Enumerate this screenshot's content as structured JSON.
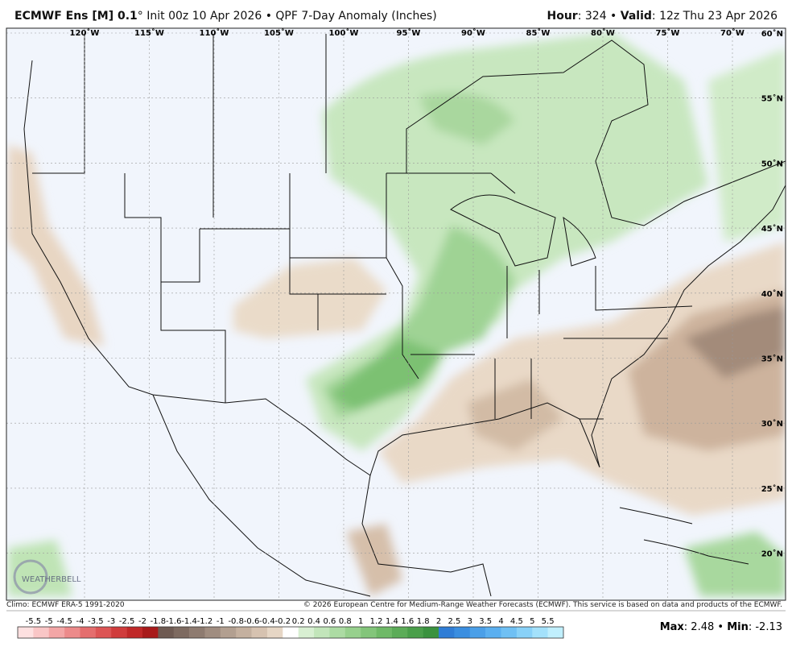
{
  "header": {
    "title_bold": "ECMWF Ens [M] 0.1",
    "title_rest": "° Init 00z 10 Apr 2026 • QPF 7-Day Anomaly (Inches)",
    "hour_label": "Hour",
    "hour_value": ": 324 • ",
    "valid_label": "Valid",
    "valid_value": ": 12z Thu 23 Apr 2026"
  },
  "map": {
    "longitudes": [
      "120˚W",
      "115˚W",
      "110˚W",
      "105˚W",
      "100˚W",
      "95˚W",
      "90˚W",
      "85˚W",
      "80˚W",
      "75˚W",
      "70˚W"
    ],
    "latitudes": [
      "60˚N",
      "55˚N",
      "50˚N",
      "45˚N",
      "40˚N",
      "35˚N",
      "30˚N",
      "25˚N",
      "20˚N"
    ],
    "logo": "WEATHERBELL"
  },
  "footer": {
    "climo": "Climo: ECMWF ERA-5 1991-2020",
    "copyright": "© 2026 European Centre for Medium-Range Weather Forecasts (ECMWF). This service is based on data and products of the ECMWF."
  },
  "colorbar": {
    "labels": [
      "-5.5",
      "-5",
      "-4.5",
      "-4",
      "-3.5",
      "-3",
      "-2.5",
      "-2",
      "-1.8",
      "-1.6",
      "-1.4",
      "-1.2",
      "-1",
      "-0.8",
      "-0.6",
      "-0.4",
      "-0.2",
      "0.2",
      "0.4",
      "0.6",
      "0.8",
      "1",
      "1.2",
      "1.4",
      "1.6",
      "1.8",
      "2",
      "2.5",
      "3",
      "3.5",
      "4",
      "4.5",
      "5",
      "5.5"
    ],
    "colors": [
      "#fde0e0",
      "#f9c6c6",
      "#f3a6a6",
      "#ec8a8a",
      "#e46d6d",
      "#dc5454",
      "#d03c3c",
      "#c02828",
      "#a81a1a",
      "#6e5a52",
      "#7d6a60",
      "#8e7b70",
      "#a08d80",
      "#b29f90",
      "#c4b09f",
      "#d6c2b0",
      "#e6d6c5",
      "#ffffff",
      "#d8efd2",
      "#c2e5ba",
      "#acdba3",
      "#97d08d",
      "#83c57a",
      "#6fb967",
      "#5cac58",
      "#4a9f4a",
      "#3a923e",
      "#2f7dd6",
      "#3a8ee0",
      "#4a9fe8",
      "#5aaff0",
      "#6fc0f4",
      "#88d1f8",
      "#a3e1fb",
      "#c0effd"
    ]
  },
  "stats": {
    "max_label": "Max",
    "max_value": ": 2.48 • ",
    "min_label": "Min",
    "min_value": ": -2.13"
  }
}
